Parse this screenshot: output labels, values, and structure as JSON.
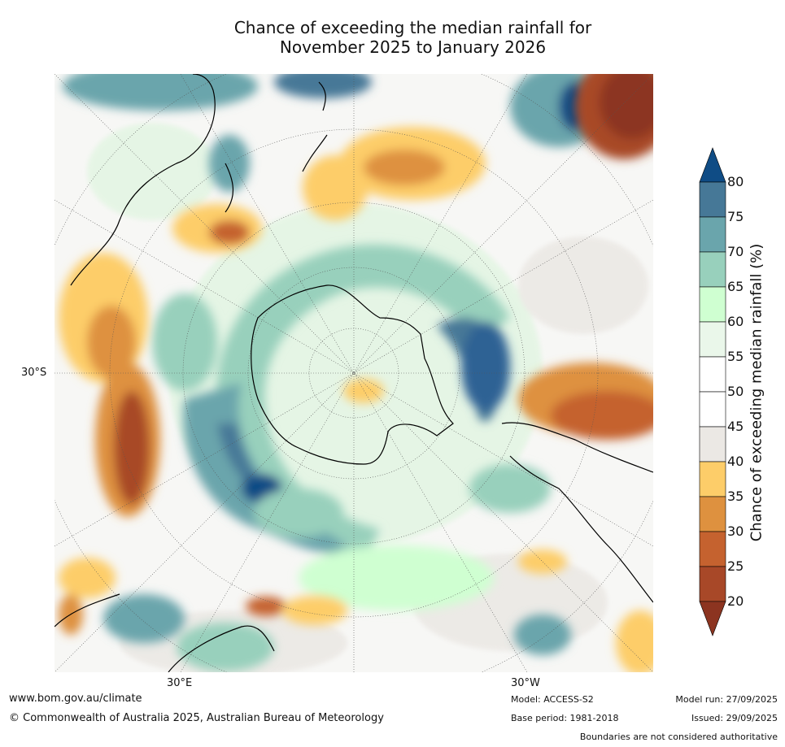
{
  "title": {
    "line1": "Chance of exceeding the median rainfall for",
    "line2": "November 2025 to January 2026"
  },
  "map": {
    "projection_center": "South Pole",
    "graticule_labels": {
      "left_lat": "30°S",
      "bottom_left_lon": "30°E",
      "bottom_right_lon": "30°W"
    }
  },
  "legend": {
    "title": "Chance of exceeding median rainfall (%)",
    "ticks": [
      "80",
      "75",
      "70",
      "65",
      "60",
      "55",
      "50",
      "45",
      "40",
      "35",
      "30",
      "25",
      "20"
    ],
    "colors": [
      "#0f4c85",
      "#467897",
      "#6aa5ac",
      "#98d0bc",
      "#cfffd1",
      "#eaf7ea",
      "#ffffff",
      "#ffffff",
      "#ebe8e4",
      "#fdcd69",
      "#de913f",
      "#c5622f",
      "#a84828",
      "#8c3420"
    ]
  },
  "footer": {
    "website": "www.bom.gov.au/climate",
    "copyright": "© Commonwealth of Australia 2025, Australian Bureau of Meteorology",
    "model": "Model: ACCESS-S2",
    "base_period": "Base period: 1981-2018",
    "model_run": "Model run: 27/09/2025",
    "issued": "Issued: 29/09/2025",
    "disclaimer": "Boundaries are not considered authoritative"
  }
}
